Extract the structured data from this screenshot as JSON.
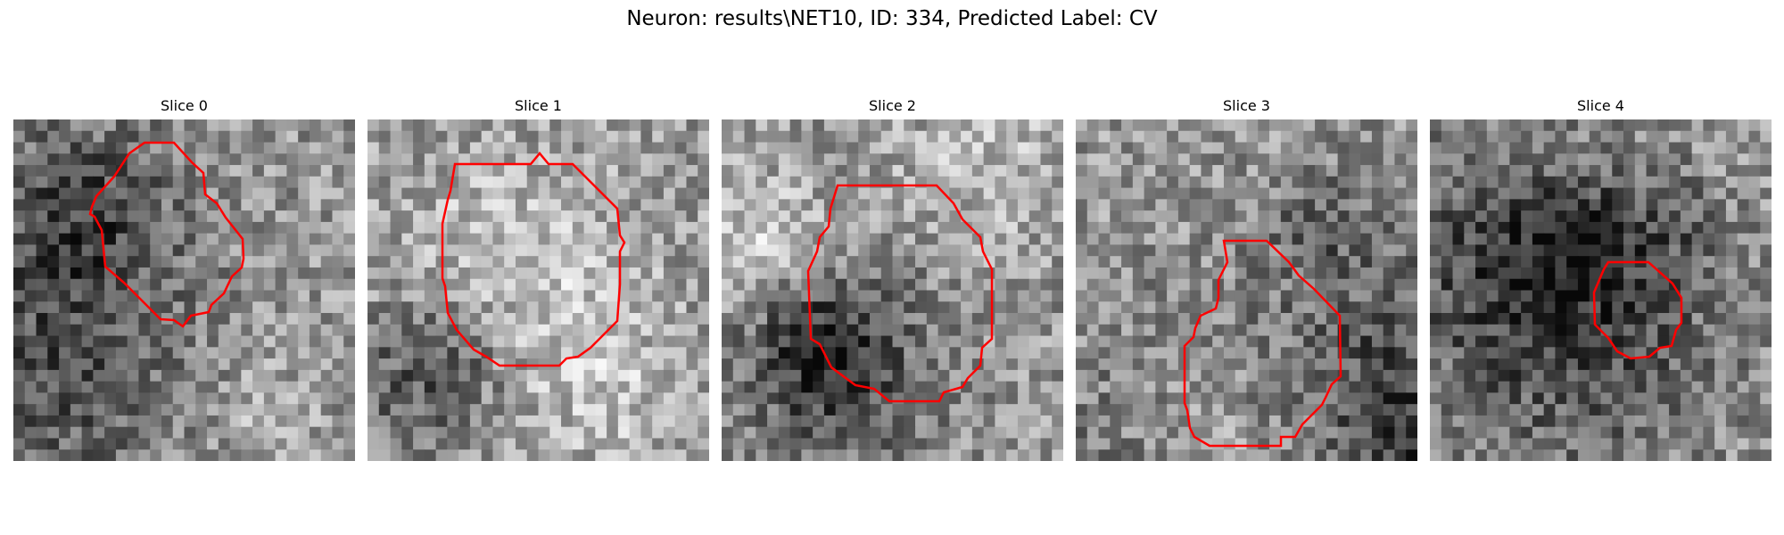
{
  "figure": {
    "title": "Neuron: results\\NET10, ID: 334, Predicted Label: CV"
  },
  "colors": {
    "contour": "#ff0000",
    "background": "#ffffff"
  },
  "panels": [
    {
      "title": "Slice 0",
      "seed": 11
    },
    {
      "title": "Slice 1",
      "seed": 23
    },
    {
      "title": "Slice 2",
      "seed": 37
    },
    {
      "title": "Slice 3",
      "seed": 41
    },
    {
      "title": "Slice 4",
      "seed": 53
    }
  ]
}
